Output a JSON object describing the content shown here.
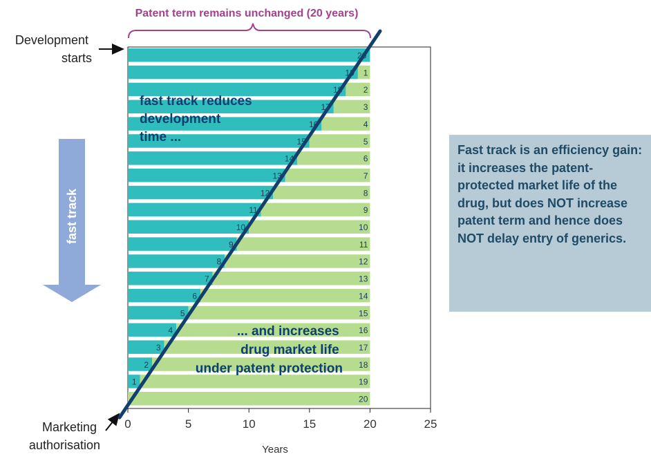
{
  "header": {
    "bracket_label": "Patent term remains unchanged (20 years)"
  },
  "labels": {
    "development_start": [
      "Development",
      "starts"
    ],
    "marketing_authorisation": [
      "Marketing",
      "authorisation"
    ],
    "fast_track_arrow": "fast track",
    "overlay_top": [
      "fast track reduces",
      "development",
      "time ..."
    ],
    "overlay_bottom": [
      "... and  increases",
      "drug market life",
      "under patent protection"
    ]
  },
  "info_box": {
    "text": "Fast track is an efficiency gain: it increases the patent-protected market life of the drug, but does NOT increase patent term and hence does NOT delay entry of generics."
  },
  "colors": {
    "development": "#2fbdbd",
    "market_life": "#b6dc8f",
    "diagonal": "#123f6b",
    "overlay_text": "#0d3f70",
    "bracket": "#a2428f",
    "arrow": "#8fa9d9",
    "info_box_bg": "#b7cbd7",
    "info_box_text": "#1f4a64"
  },
  "chart_data": {
    "type": "bar",
    "orientation": "horizontal",
    "stacked": true,
    "xlabel": "Years",
    "xlim": [
      0,
      25
    ],
    "xticks": [
      0,
      5,
      10,
      15,
      20,
      25
    ],
    "series": [
      {
        "values": [
          20,
          19,
          18,
          17,
          16,
          15,
          14,
          13,
          12,
          11,
          10,
          9,
          8,
          7,
          6,
          5,
          4,
          3,
          2,
          1,
          0
        ]
      },
      {
        "values": [
          0,
          1,
          2,
          3,
          4,
          5,
          6,
          7,
          8,
          9,
          10,
          11,
          12,
          13,
          14,
          15,
          16,
          17,
          18,
          19,
          20
        ]
      }
    ]
  }
}
